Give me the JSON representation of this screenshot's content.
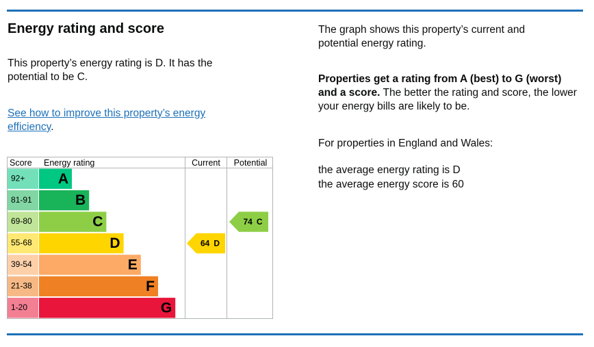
{
  "heading": "Energy rating and score",
  "rating_text": "This property’s energy rating is D. It has the potential to be C.",
  "link": "See how to improve this property’s energy efficiency",
  "link_suffix": ".",
  "chart": {
    "headers": [
      "Score",
      "Energy rating",
      "Current",
      "Potential"
    ],
    "bands": [
      {
        "score": "92+",
        "letter": "A",
        "color": "#00c781"
      },
      {
        "score": "81-91",
        "letter": "B",
        "color": "#19b459"
      },
      {
        "score": "69-80",
        "letter": "C",
        "color": "#8dce46"
      },
      {
        "score": "55-68",
        "letter": "D",
        "color": "#ffd500"
      },
      {
        "score": "39-54",
        "letter": "E",
        "color": "#fcaa65"
      },
      {
        "score": "21-38",
        "letter": "F",
        "color": "#ef8023"
      },
      {
        "score": "1-20",
        "letter": "G",
        "color": "#e9153b"
      }
    ],
    "current": {
      "score": 64,
      "letter": "D"
    },
    "potential": {
      "score": 74,
      "letter": "C"
    }
  },
  "info": {
    "intro": "The graph shows this property’s current and potential energy rating.",
    "bold": "Properties get a rating from A (best) to G (worst) and a score.",
    "rest": "The better the rating and score, the lower your energy bills are likely to be.",
    "region": "For properties in England and Wales:",
    "avg_rating": "the average energy rating is D",
    "avg_score": "the average energy score is 60"
  }
}
